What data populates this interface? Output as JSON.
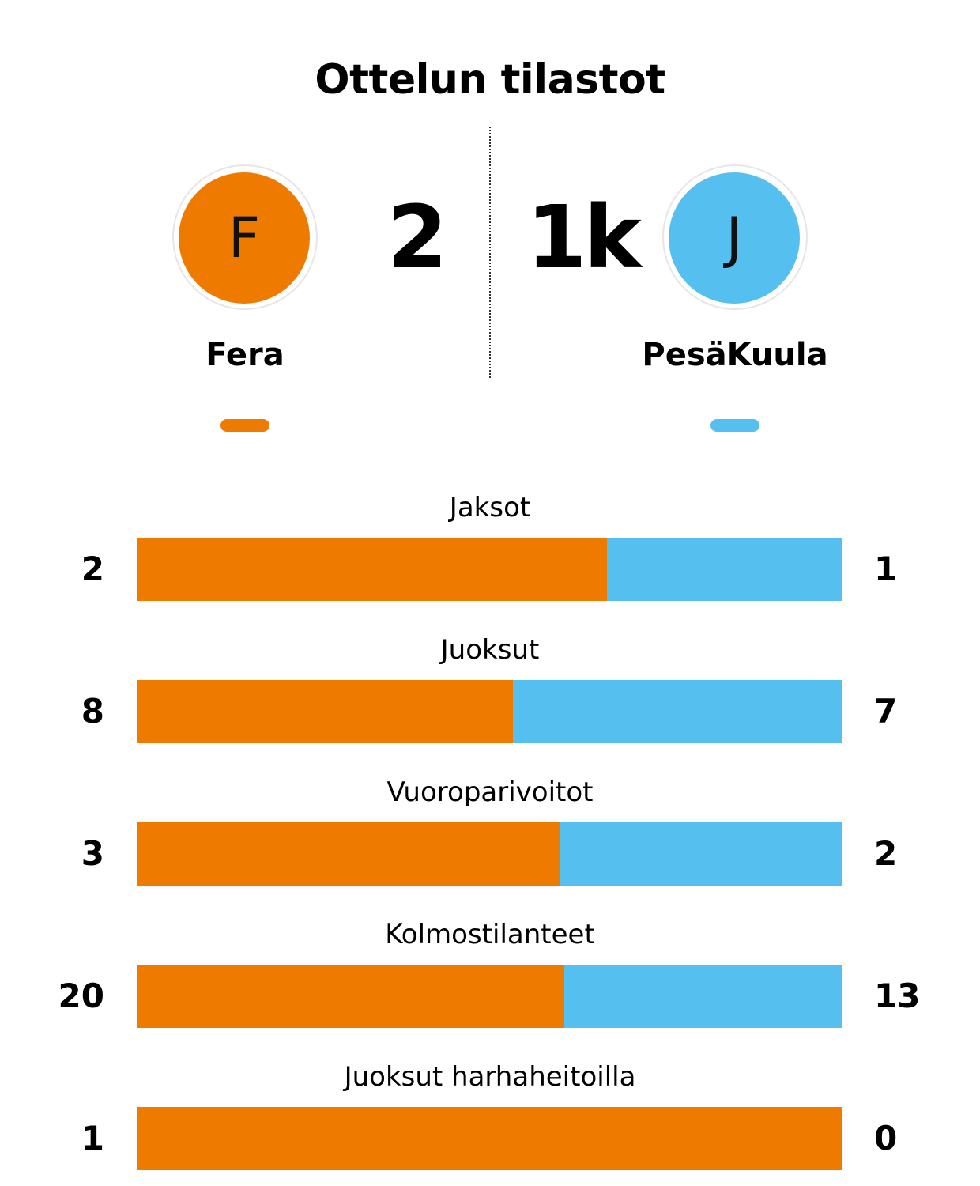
{
  "title": "Ottelun tilastot",
  "colors": {
    "home": "#ee7b00",
    "away": "#55c0ef"
  },
  "home": {
    "name": "Fera",
    "logo_letter": "F",
    "score": "2"
  },
  "away": {
    "name": "PesäKuula",
    "logo_letter": "J",
    "score": "1k"
  },
  "chart_data": {
    "type": "bar",
    "orientation": "horizontal-stacked",
    "series": [
      {
        "team": "home",
        "values": [
          2,
          8,
          3,
          20,
          1
        ]
      },
      {
        "team": "away",
        "values": [
          1,
          7,
          2,
          13,
          0
        ]
      }
    ],
    "categories": [
      "Jaksot",
      "Juoksut",
      "Vuoroparivoitot",
      "Kolmostilanteet",
      "Juoksut harhaheitoilla"
    ],
    "rows": [
      {
        "label": "Jaksot",
        "home": "2",
        "away": "1"
      },
      {
        "label": "Juoksut",
        "home": "8",
        "away": "7"
      },
      {
        "label": "Vuoroparivoitot",
        "home": "3",
        "away": "2"
      },
      {
        "label": "Kolmostilanteet",
        "home": "20",
        "away": "13"
      },
      {
        "label": "Juoksut harhaheitoilla",
        "home": "1",
        "away": "0"
      }
    ]
  }
}
